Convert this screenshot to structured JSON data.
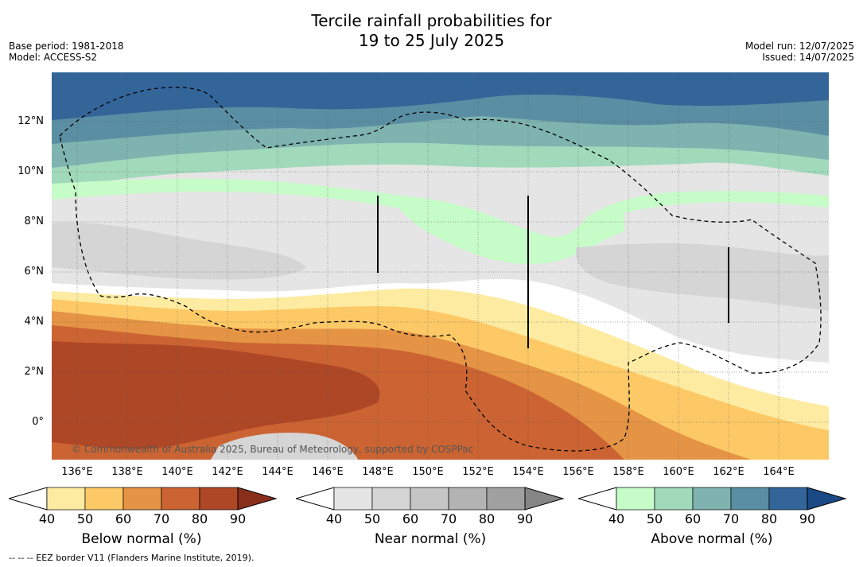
{
  "title": {
    "line1": "Tercile rainfall probabilities for",
    "line2": "19 to 25 July 2025"
  },
  "meta_left": {
    "base_period": "Base period: 1981-2018",
    "model": "Model: ACCESS-S2"
  },
  "meta_right": {
    "model_run": "Model run: 12/07/2025",
    "issued": "Issued: 14/07/2025"
  },
  "map": {
    "lat_ticks": [
      "12°N",
      "10°N",
      "8°N",
      "6°N",
      "4°N",
      "2°N",
      "0°"
    ],
    "lon_ticks": [
      "136°E",
      "138°E",
      "140°E",
      "142°E",
      "144°E",
      "146°E",
      "148°E",
      "150°E",
      "152°E",
      "154°E",
      "156°E",
      "158°E",
      "160°E",
      "162°E",
      "164°E"
    ],
    "copyright": "© Commonwealth of Australia 2025, Bureau of Meteorology, supported by COSPPac"
  },
  "colorbars": [
    {
      "title": "Below normal (%)",
      "ticks": [
        "40",
        "50",
        "60",
        "70",
        "80",
        "90"
      ],
      "colors": [
        "#ffffff",
        "#fdeba1",
        "#fdc966",
        "#e59445",
        "#cb6432",
        "#ae4726",
        "#8a2e1c"
      ]
    },
    {
      "title": "Near normal (%)",
      "ticks": [
        "40",
        "50",
        "60",
        "70",
        "80",
        "90"
      ],
      "colors": [
        "#ffffff",
        "#e5e5e5",
        "#d5d5d5",
        "#c5c5c5",
        "#b3b3b3",
        "#a0a0a0",
        "#858585"
      ]
    },
    {
      "title": "Above normal (%)",
      "ticks": [
        "40",
        "50",
        "60",
        "70",
        "80",
        "90"
      ],
      "colors": [
        "#ffffff",
        "#c6fcc8",
        "#a1d9bb",
        "#7fb3b0",
        "#5a8fa3",
        "#336599",
        "#1a4a85"
      ]
    }
  ],
  "footnote": "--  --  -- EEZ border V11 (Flanders Marine Institute, 2019)."
}
